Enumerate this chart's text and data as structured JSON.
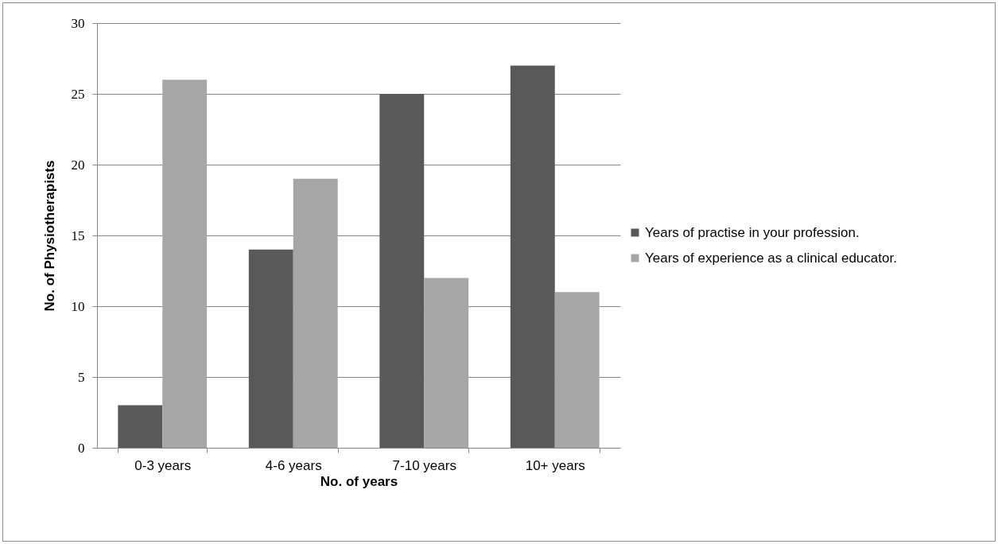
{
  "chart_data": {
    "type": "bar",
    "xlabel": "No. of years",
    "ylabel": "No. of Physiotherapists",
    "categories": [
      "0-3 years",
      "4-6 years",
      "7-10 years",
      "10+ years"
    ],
    "series": [
      {
        "name": "Years of practise in your profession.",
        "color": "#595959",
        "values": [
          3,
          14,
          25,
          27
        ]
      },
      {
        "name": "Years of experience as a clinical educator.",
        "color": "#a6a6a6",
        "values": [
          26,
          19,
          12,
          11
        ]
      }
    ],
    "ylim": [
      0,
      30
    ],
    "yticks": [
      0,
      5,
      10,
      15,
      20,
      25,
      30
    ],
    "grid": "y",
    "legend": "right"
  }
}
